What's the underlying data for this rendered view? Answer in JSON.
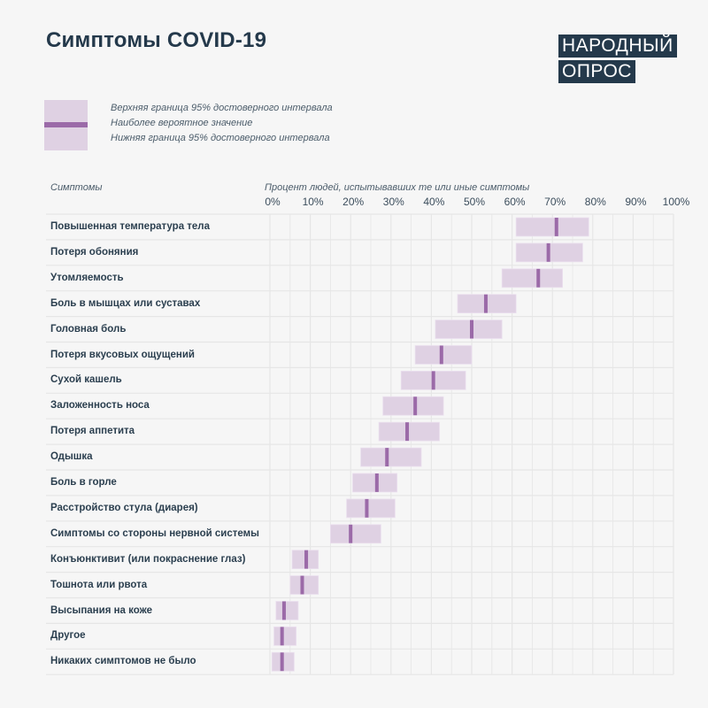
{
  "header": {
    "title": "Симптомы COVID-19",
    "brand_line1": "НАРОДНЫЙ",
    "brand_line2": "ОПРОС"
  },
  "legend": {
    "upper": "Верхняя граница 95% достоверного интервала",
    "median": "Наиболее вероятное значение",
    "lower": "Нижняя граница 95% достоверного интервала"
  },
  "colors": {
    "interval": "#dfd1e3",
    "median": "#9b6aa8",
    "grid": "#e6e6e6",
    "text": "#2b3f4f",
    "brand": "#24394b"
  },
  "chart_data": {
    "type": "range-bar",
    "title": "Симптомы COVID-19",
    "row_header": "Симптомы",
    "xlabel": "Процент людей, испытывавших те или иные симптомы",
    "xlim": [
      0,
      100
    ],
    "x_ticks": [
      "0%",
      "10%",
      "20%",
      "30%",
      "40%",
      "50%",
      "60%",
      "70%",
      "80%",
      "90%",
      "100%"
    ],
    "grid": true,
    "rows": [
      {
        "label": "Повышенная температура тела",
        "low": 61,
        "mid": 71,
        "high": 79
      },
      {
        "label": "Потеря обоняния",
        "low": 61,
        "mid": 69,
        "high": 77.5
      },
      {
        "label": "Утомляемость",
        "low": 57.5,
        "mid": 66.5,
        "high": 72.5
      },
      {
        "label": "Боль в мышцах или суставах",
        "low": 46.5,
        "mid": 53.5,
        "high": 61
      },
      {
        "label": "Головная боль",
        "low": 41,
        "mid": 50,
        "high": 57.5
      },
      {
        "label": "Потеря вкусовых ощущений",
        "low": 36,
        "mid": 42.5,
        "high": 50
      },
      {
        "label": "Сухой кашель",
        "low": 32.5,
        "mid": 40.5,
        "high": 48.5
      },
      {
        "label": "Заложенность носа",
        "low": 28,
        "mid": 36,
        "high": 43
      },
      {
        "label": "Потеря аппетита",
        "low": 27,
        "mid": 34,
        "high": 42
      },
      {
        "label": "Одышка",
        "low": 22.5,
        "mid": 29,
        "high": 37.5
      },
      {
        "label": "Боль в горле",
        "low": 20.5,
        "mid": 26.5,
        "high": 31.5
      },
      {
        "label": "Расстройство стула (диарея)",
        "low": 19,
        "mid": 24,
        "high": 31
      },
      {
        "label": "Симптомы со стороны нервной системы",
        "low": 15,
        "mid": 20,
        "high": 27.5
      },
      {
        "label": "Конъюнктивит (или покраснение глаз)",
        "low": 5.5,
        "mid": 9,
        "high": 12
      },
      {
        "label": "Тошнота или рвота",
        "low": 5,
        "mid": 8,
        "high": 12
      },
      {
        "label": "Высыпания на коже",
        "low": 1.5,
        "mid": 3.5,
        "high": 7
      },
      {
        "label": "Другое",
        "low": 1,
        "mid": 3,
        "high": 6.5
      },
      {
        "label": "Никаких симптомов не было",
        "low": 0.5,
        "mid": 3,
        "high": 6
      }
    ]
  }
}
